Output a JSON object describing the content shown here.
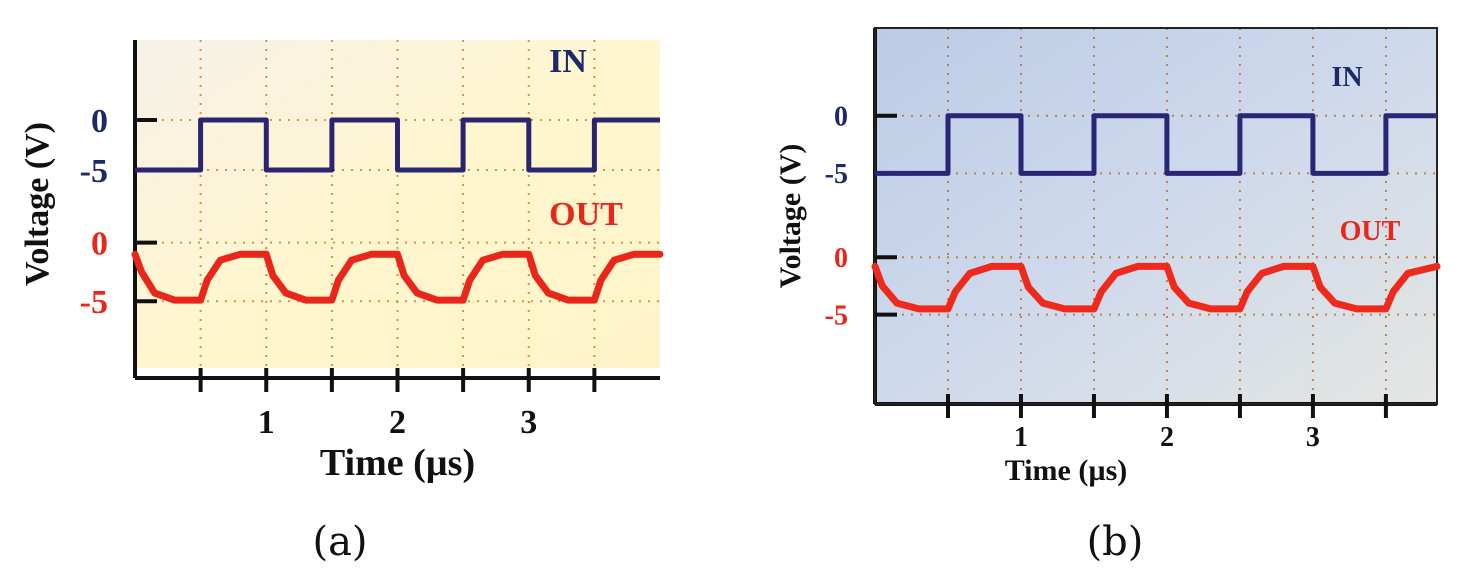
{
  "chart_data": [
    {
      "type": "line",
      "panel_label": "(a)",
      "xlabel": "Time (µs)",
      "ylabel": "Voltage (V)",
      "xlim": [
        0,
        4.0
      ],
      "x_ticks": [
        1,
        2,
        3
      ],
      "grid": true,
      "colors": {
        "in": "#2b2570",
        "out": "#e8271a",
        "in_label": "#1c2a66",
        "out_label": "#e8271a",
        "background": "#fff4d0"
      },
      "in_trace": {
        "label": "IN",
        "y_ticks": [
          0,
          -5
        ],
        "ylim": [
          -8,
          5
        ],
        "x": [
          0.0,
          0.5,
          0.5,
          1.0,
          1.0,
          1.5,
          1.5,
          2.0,
          2.0,
          2.5,
          2.5,
          3.0,
          3.0,
          3.5,
          3.5,
          4.0
        ],
        "y": [
          -5,
          -5,
          0,
          0,
          -5,
          -5,
          0,
          0,
          -5,
          -5,
          0,
          0,
          -5,
          -5,
          0,
          0
        ]
      },
      "out_trace": {
        "label": "OUT",
        "y_ticks": [
          0,
          -5
        ],
        "ylim": [
          -10,
          1.5
        ],
        "x": [
          0.0,
          0.05,
          0.15,
          0.3,
          0.5,
          0.55,
          0.65,
          0.8,
          1.0,
          1.05,
          1.15,
          1.3,
          1.5,
          1.55,
          1.65,
          1.8,
          2.0,
          2.05,
          2.15,
          2.3,
          2.5,
          2.55,
          2.65,
          2.8,
          3.0,
          3.05,
          3.15,
          3.3,
          3.5,
          3.55,
          3.65,
          3.8,
          4.0
        ],
        "y": [
          -1,
          -2.5,
          -4.3,
          -4.9,
          -4.9,
          -3.2,
          -1.5,
          -1.0,
          -1.0,
          -2.8,
          -4.3,
          -4.9,
          -4.9,
          -3.2,
          -1.5,
          -1.0,
          -1.0,
          -2.8,
          -4.3,
          -4.9,
          -4.9,
          -3.2,
          -1.5,
          -1.0,
          -1.0,
          -2.8,
          -4.3,
          -4.9,
          -4.9,
          -3.2,
          -1.5,
          -1.0,
          -1.0
        ]
      }
    },
    {
      "type": "line",
      "panel_label": "(b)",
      "xlabel": "Time (µs)",
      "ylabel": "Voltage (V)",
      "xlim": [
        0,
        3.85
      ],
      "x_ticks": [
        1,
        2,
        3
      ],
      "grid": true,
      "colors": {
        "in": "#2b2578",
        "out": "#ee2a1c",
        "in_label": "#1c2a66",
        "out_label": "#e8271a",
        "background": "#c9d6ea"
      },
      "in_trace": {
        "label": "IN",
        "y_ticks": [
          0,
          -5
        ],
        "ylim": [
          -8,
          5
        ],
        "x": [
          0.0,
          0.5,
          0.5,
          1.0,
          1.0,
          1.5,
          1.5,
          2.0,
          2.0,
          2.5,
          2.5,
          3.0,
          3.0,
          3.5,
          3.5,
          3.85
        ],
        "y": [
          -5,
          -5,
          0,
          0,
          -5,
          -5,
          0,
          0,
          -5,
          -5,
          0,
          0,
          -5,
          -5,
          0,
          0
        ]
      },
      "out_trace": {
        "label": "OUT",
        "y_ticks": [
          0,
          -5
        ],
        "ylim": [
          -10,
          1.5
        ],
        "x": [
          0.0,
          0.05,
          0.15,
          0.3,
          0.5,
          0.55,
          0.65,
          0.8,
          1.0,
          1.05,
          1.15,
          1.3,
          1.5,
          1.55,
          1.65,
          1.8,
          2.0,
          2.05,
          2.15,
          2.3,
          2.5,
          2.55,
          2.65,
          2.8,
          3.0,
          3.05,
          3.15,
          3.3,
          3.5,
          3.55,
          3.65,
          3.85
        ],
        "y": [
          -0.8,
          -2.5,
          -4.0,
          -4.5,
          -4.5,
          -3.0,
          -1.4,
          -0.8,
          -0.8,
          -2.6,
          -4.0,
          -4.5,
          -4.5,
          -3.0,
          -1.4,
          -0.8,
          -0.8,
          -2.6,
          -4.0,
          -4.5,
          -4.5,
          -3.0,
          -1.4,
          -0.8,
          -0.8,
          -2.6,
          -4.0,
          -4.5,
          -4.5,
          -3.0,
          -1.4,
          -0.8
        ]
      }
    }
  ]
}
